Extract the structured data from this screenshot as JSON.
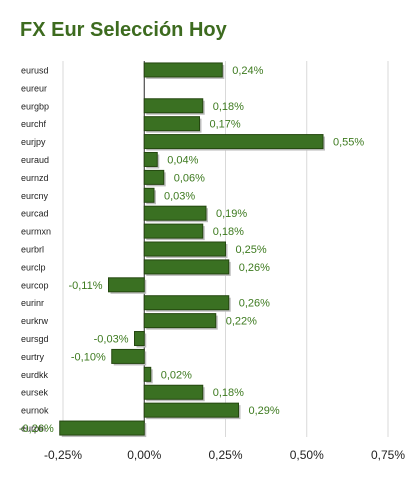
{
  "colors": {
    "bar": "#3a7022",
    "bar_edge": "#24470f",
    "bar_shadow": "#bdbdbd",
    "title": "#3d6b1f",
    "value_label": "#3d7a1f",
    "grid": "#d9d9d9",
    "axis_text": "#222222"
  },
  "chart_data": {
    "type": "bar",
    "orientation": "horizontal",
    "title": "FX Eur Selección Hoy",
    "categories": [
      "eurusd",
      "eureur",
      "eurgbp",
      "eurchf",
      "eurjpy",
      "euraud",
      "eurnzd",
      "eurcny",
      "eurcad",
      "eurmxn",
      "eurbrl",
      "eurclp",
      "eurcop",
      "eurinr",
      "eurkrw",
      "eursgd",
      "eurtry",
      "eurdkk",
      "eursek",
      "eurnok",
      "eurpln"
    ],
    "values": [
      0.24,
      null,
      0.18,
      0.17,
      0.55,
      0.04,
      0.06,
      0.03,
      0.19,
      0.18,
      0.25,
      0.26,
      -0.11,
      0.26,
      0.22,
      -0.03,
      -0.1,
      0.02,
      0.18,
      0.29,
      -0.26
    ],
    "value_labels": [
      "0,24%",
      "",
      "0,18%",
      "0,17%",
      "0,55%",
      "0,04%",
      "0,06%",
      "0,03%",
      "0,19%",
      "0,18%",
      "0,25%",
      "0,26%",
      "-0,11%",
      "0,26%",
      "0,22%",
      "-0,03%",
      "-0,10%",
      "0,02%",
      "0,18%",
      "0,29%",
      "-0,26%"
    ],
    "xlim": [
      -0.25,
      0.75
    ],
    "xticks": [
      -0.25,
      0,
      0.25,
      0.5,
      0.75
    ],
    "xtick_labels": [
      "-0,25%",
      "0,00%",
      "0,25%",
      "0,50%",
      "0,75%"
    ],
    "grid": true,
    "legend": "none"
  }
}
